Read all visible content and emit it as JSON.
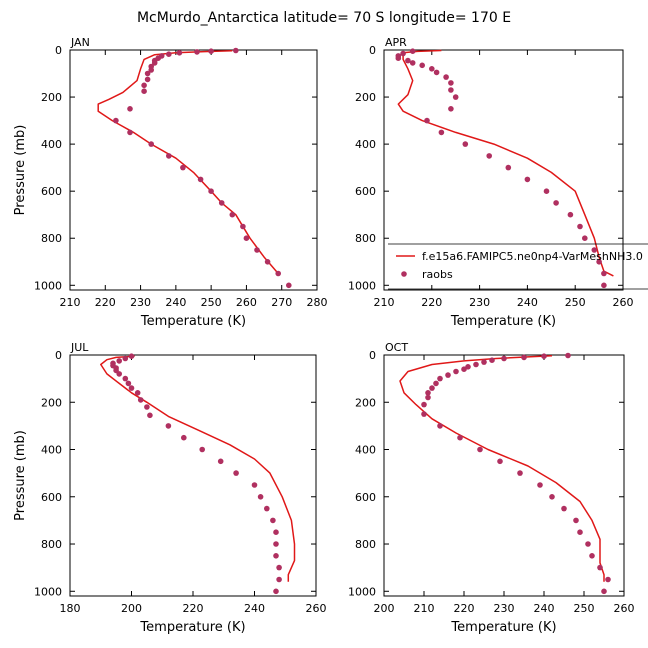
{
  "figure_title": "McMurdo_Antarctica  latitude= 70 S longitude= 170 E",
  "colors": {
    "model_line": "#e01818",
    "obs_marker": "#b03060",
    "axis": "#000000"
  },
  "legend": {
    "line_label": "f.e15a6.FAMIPC5.ne0np4-VarMeshNH3.0",
    "marker_label": "raobs"
  },
  "chart_data": [
    {
      "type": "line",
      "panel": "JAN",
      "xlabel": "Temperature (K)",
      "ylabel": "Pressure (mb)",
      "xlim": [
        210,
        280
      ],
      "ylim": [
        1020,
        0
      ],
      "xticks": [
        210,
        220,
        230,
        240,
        250,
        260,
        270,
        280
      ],
      "yticks": [
        0,
        200,
        400,
        600,
        800,
        1000
      ],
      "series": [
        {
          "name": "f.e15a6.FAMIPC5.ne0np4-VarMeshNH3.0",
          "kind": "line",
          "points": [
            [
              256,
              3
            ],
            [
              248,
              7
            ],
            [
              240,
              12
            ],
            [
              234,
              20
            ],
            [
              231,
              40
            ],
            [
              230,
              80
            ],
            [
              229,
              130
            ],
            [
              225,
              180
            ],
            [
              221,
              210
            ],
            [
              218,
              230
            ],
            [
              218,
              260
            ],
            [
              222,
              300
            ],
            [
              228,
              350
            ],
            [
              233,
              400
            ],
            [
              240,
              460
            ],
            [
              245,
              520
            ],
            [
              250,
              600
            ],
            [
              253,
              650
            ],
            [
              257,
              700
            ],
            [
              261,
              800
            ],
            [
              265,
              880
            ],
            [
              269,
              950
            ]
          ]
        },
        {
          "name": "raobs",
          "kind": "marker",
          "points": [
            [
              257,
              2
            ],
            [
              250,
              5
            ],
            [
              246,
              8
            ],
            [
              241,
              12
            ],
            [
              238,
              18
            ],
            [
              236,
              25
            ],
            [
              235,
              35
            ],
            [
              234,
              45
            ],
            [
              234,
              55
            ],
            [
              233,
              70
            ],
            [
              233,
              85
            ],
            [
              232,
              100
            ],
            [
              232,
              125
            ],
            [
              231,
              150
            ],
            [
              231,
              175
            ],
            [
              227,
              250
            ],
            [
              223,
              300
            ],
            [
              227,
              350
            ],
            [
              233,
              400
            ],
            [
              238,
              450
            ],
            [
              242,
              500
            ],
            [
              247,
              550
            ],
            [
              250,
              600
            ],
            [
              253,
              650
            ],
            [
              256,
              700
            ],
            [
              259,
              750
            ],
            [
              260,
              800
            ],
            [
              263,
              850
            ],
            [
              266,
              900
            ],
            [
              269,
              950
            ],
            [
              272,
              1000
            ]
          ]
        }
      ]
    },
    {
      "type": "line",
      "panel": "APR",
      "xlabel": "Temperature (K)",
      "ylabel": "Pressure (mb)",
      "xlim": [
        210,
        260
      ],
      "ylim": [
        1020,
        0
      ],
      "xticks": [
        210,
        220,
        230,
        240,
        250,
        260
      ],
      "yticks": [
        0,
        200,
        400,
        600,
        800,
        1000
      ],
      "series": [
        {
          "name": "f.e15a6.FAMIPC5.ne0np4-VarMeshNH3.0",
          "kind": "line",
          "points": [
            [
              222,
              2
            ],
            [
              217,
              6
            ],
            [
              214,
              12
            ],
            [
              214,
              40
            ],
            [
              215,
              80
            ],
            [
              216,
              130
            ],
            [
              215,
              190
            ],
            [
              213,
              230
            ],
            [
              214,
              260
            ],
            [
              218,
              300
            ],
            [
              225,
              350
            ],
            [
              233,
              400
            ],
            [
              240,
              460
            ],
            [
              245,
              520
            ],
            [
              250,
              600
            ],
            [
              252,
              700
            ],
            [
              254,
              800
            ],
            [
              255,
              880
            ],
            [
              256,
              940
            ],
            [
              258,
              960
            ]
          ]
        },
        {
          "name": "raobs",
          "kind": "marker",
          "points": [
            [
              216,
              5
            ],
            [
              214,
              15
            ],
            [
              213,
              25
            ],
            [
              213,
              35
            ],
            [
              215,
              45
            ],
            [
              216,
              55
            ],
            [
              218,
              65
            ],
            [
              220,
              80
            ],
            [
              221,
              95
            ],
            [
              223,
              115
            ],
            [
              224,
              140
            ],
            [
              224,
              170
            ],
            [
              225,
              200
            ],
            [
              224,
              250
            ],
            [
              219,
              300
            ],
            [
              222,
              350
            ],
            [
              227,
              400
            ],
            [
              232,
              450
            ],
            [
              236,
              500
            ],
            [
              240,
              550
            ],
            [
              244,
              600
            ],
            [
              246,
              650
            ],
            [
              249,
              700
            ],
            [
              251,
              750
            ],
            [
              252,
              800
            ],
            [
              254,
              850
            ],
            [
              255,
              900
            ],
            [
              256,
              950
            ],
            [
              256,
              1000
            ]
          ]
        }
      ]
    },
    {
      "type": "line",
      "panel": "JUL",
      "xlabel": "Temperature (K)",
      "ylabel": "Pressure (mb)",
      "xlim": [
        180,
        260
      ],
      "ylim": [
        1020,
        0
      ],
      "xticks": [
        180,
        200,
        220,
        240,
        260
      ],
      "yticks": [
        0,
        200,
        400,
        600,
        800,
        1000
      ],
      "series": [
        {
          "name": "f.e15a6.FAMIPC5.ne0np4-VarMeshNH3.0",
          "kind": "line",
          "points": [
            [
              201,
              5
            ],
            [
              195,
              10
            ],
            [
              192,
              20
            ],
            [
              190,
              40
            ],
            [
              192,
              80
            ],
            [
              196,
              120
            ],
            [
              200,
              160
            ],
            [
              205,
              200
            ],
            [
              212,
              260
            ],
            [
              222,
              320
            ],
            [
              232,
              380
            ],
            [
              240,
              440
            ],
            [
              245,
              500
            ],
            [
              249,
              600
            ],
            [
              252,
              700
            ],
            [
              253,
              800
            ],
            [
              253,
              870
            ],
            [
              251,
              930
            ],
            [
              251,
              960
            ]
          ]
        },
        {
          "name": "raobs",
          "kind": "marker",
          "points": [
            [
              200,
              5
            ],
            [
              198,
              15
            ],
            [
              196,
              25
            ],
            [
              194,
              35
            ],
            [
              194,
              45
            ],
            [
              195,
              55
            ],
            [
              195,
              65
            ],
            [
              196,
              80
            ],
            [
              198,
              100
            ],
            [
              199,
              120
            ],
            [
              200,
              140
            ],
            [
              202,
              160
            ],
            [
              203,
              190
            ],
            [
              205,
              220
            ],
            [
              206,
              255
            ],
            [
              212,
              300
            ],
            [
              217,
              350
            ],
            [
              223,
              400
            ],
            [
              229,
              450
            ],
            [
              234,
              500
            ],
            [
              240,
              550
            ],
            [
              242,
              600
            ],
            [
              244,
              650
            ],
            [
              246,
              700
            ],
            [
              247,
              750
            ],
            [
              247,
              800
            ],
            [
              247,
              850
            ],
            [
              248,
              900
            ],
            [
              248,
              950
            ],
            [
              247,
              1000
            ]
          ]
        }
      ]
    },
    {
      "type": "line",
      "panel": "OCT",
      "xlabel": "Temperature (K)",
      "ylabel": "Pressure (mb)",
      "xlim": [
        200,
        260
      ],
      "ylim": [
        1020,
        0
      ],
      "xticks": [
        200,
        210,
        220,
        230,
        240,
        250,
        260
      ],
      "yticks": [
        0,
        200,
        400,
        600,
        800,
        1000
      ],
      "series": [
        {
          "name": "f.e15a6.FAMIPC5.ne0np4-VarMeshNH3.0",
          "kind": "line",
          "points": [
            [
              242,
              3
            ],
            [
              236,
              8
            ],
            [
              228,
              15
            ],
            [
              220,
              25
            ],
            [
              212,
              40
            ],
            [
              206,
              70
            ],
            [
              204,
              110
            ],
            [
              205,
              160
            ],
            [
              208,
              210
            ],
            [
              212,
              270
            ],
            [
              218,
              330
            ],
            [
              226,
              400
            ],
            [
              236,
              470
            ],
            [
              243,
              540
            ],
            [
              249,
              620
            ],
            [
              252,
              700
            ],
            [
              254,
              780
            ],
            [
              254,
              880
            ],
            [
              255,
              930
            ],
            [
              255,
              960
            ]
          ]
        },
        {
          "name": "raobs",
          "kind": "marker",
          "points": [
            [
              246,
              2
            ],
            [
              240,
              5
            ],
            [
              235,
              10
            ],
            [
              230,
              15
            ],
            [
              227,
              22
            ],
            [
              225,
              30
            ],
            [
              223,
              40
            ],
            [
              221,
              50
            ],
            [
              220,
              60
            ],
            [
              218,
              70
            ],
            [
              216,
              85
            ],
            [
              214,
              100
            ],
            [
              213,
              120
            ],
            [
              212,
              140
            ],
            [
              211,
              160
            ],
            [
              211,
              180
            ],
            [
              210,
              210
            ],
            [
              210,
              250
            ],
            [
              214,
              300
            ],
            [
              219,
              350
            ],
            [
              224,
              400
            ],
            [
              229,
              450
            ],
            [
              234,
              500
            ],
            [
              239,
              550
            ],
            [
              242,
              600
            ],
            [
              245,
              650
            ],
            [
              248,
              700
            ],
            [
              249,
              750
            ],
            [
              251,
              800
            ],
            [
              252,
              850
            ],
            [
              254,
              900
            ],
            [
              256,
              950
            ],
            [
              255,
              1000
            ]
          ]
        }
      ]
    }
  ]
}
